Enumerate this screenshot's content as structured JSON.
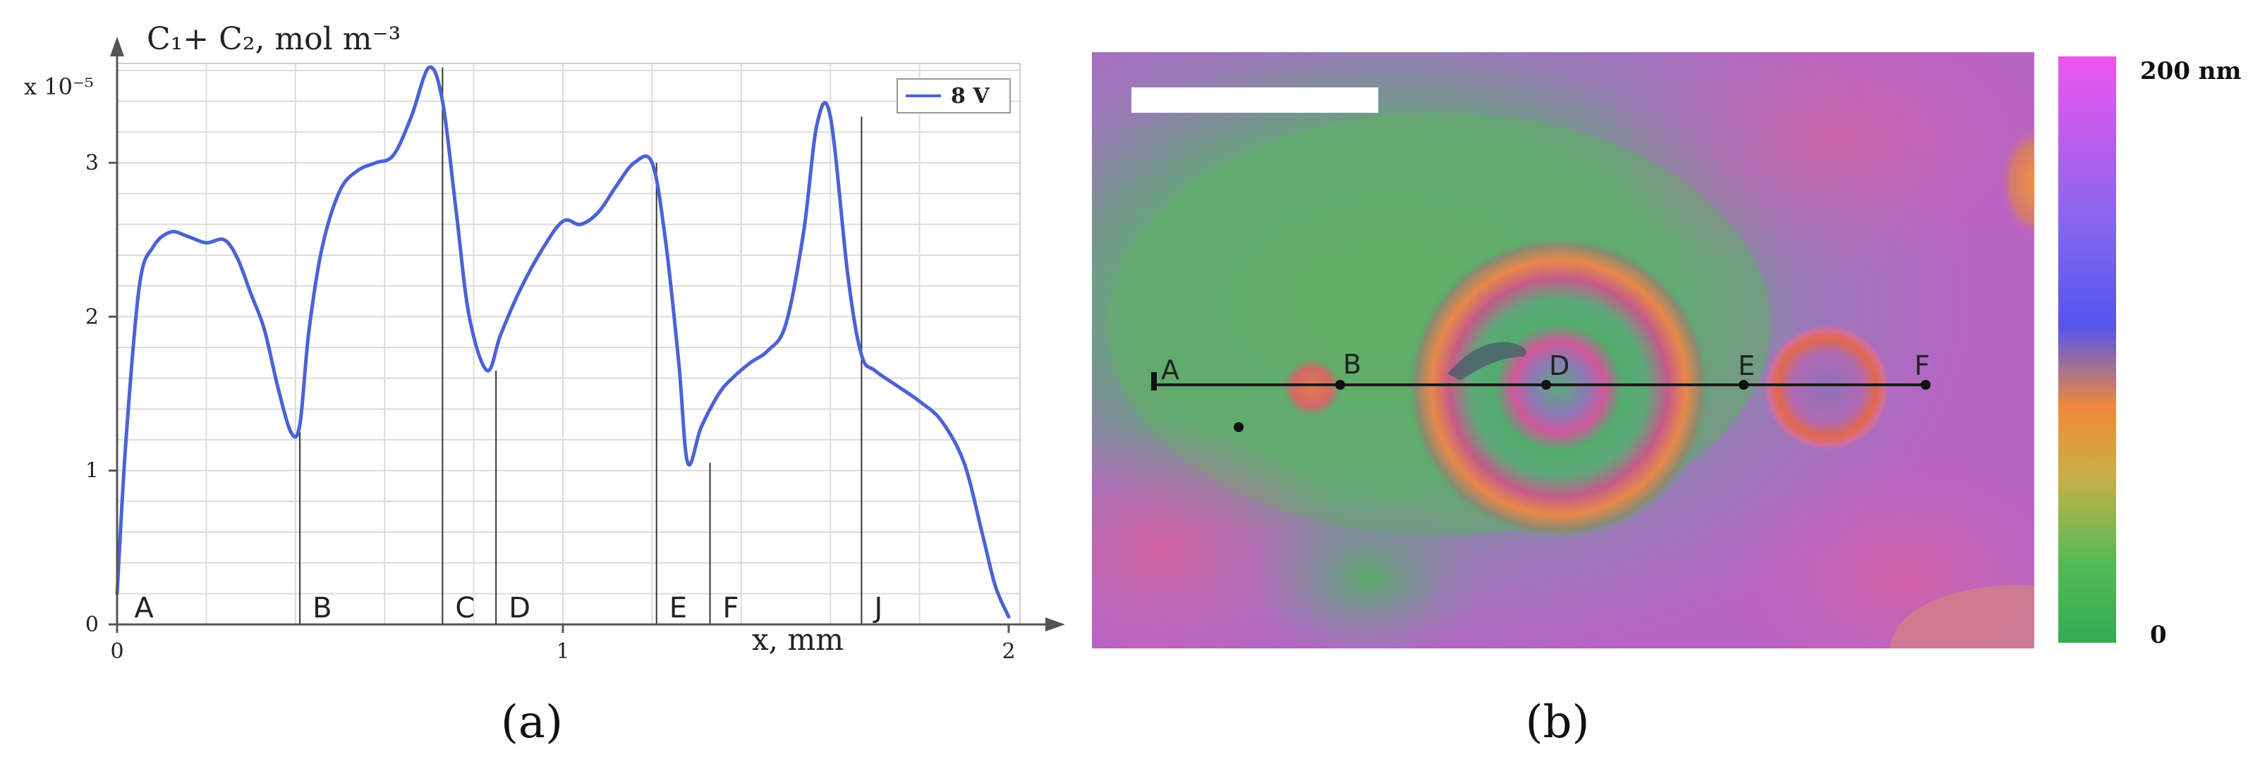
{
  "panel_a": {
    "label": "(a)",
    "ylabel": "C₁+ C₂, mol m⁻³",
    "yexp": "x 10⁻⁵",
    "xlabel": "x, mm",
    "legend_label": "8 V",
    "x_tick_labels": [
      "0",
      "1",
      "2"
    ],
    "y_tick_labels": [
      "0",
      "1",
      "2",
      "3"
    ],
    "point_labels": [
      "A",
      "B",
      "C",
      "D",
      "E",
      "F",
      "J"
    ]
  },
  "panel_b": {
    "label": "(b)",
    "colorbar_max": "200 nm",
    "colorbar_min": "0",
    "point_labels": [
      "A",
      "B",
      "D",
      "E",
      "F"
    ],
    "colorbar_colors": [
      "#ee55ee",
      "#8866ee",
      "#5555ee",
      "#f08a3a",
      "#c8b048",
      "#55bb55",
      "#33aa55"
    ]
  },
  "chart_data": [
    {
      "type": "line",
      "title": "",
      "xlabel": "x, mm",
      "ylabel": "C₁+ C₂, mol m⁻³",
      "y_multiplier": "x 10⁻⁵",
      "xlim": [
        0,
        2
      ],
      "ylim": [
        0,
        3.6
      ],
      "x_ticks": [
        0,
        1,
        2
      ],
      "y_ticks": [
        0,
        1,
        2,
        3
      ],
      "grid": true,
      "legend_position": "top-right",
      "color": "#4a62d8",
      "series": [
        {
          "name": "8 V",
          "x": [
            0.0,
            0.02,
            0.05,
            0.08,
            0.12,
            0.16,
            0.2,
            0.24,
            0.27,
            0.3,
            0.33,
            0.36,
            0.39,
            0.41,
            0.43,
            0.46,
            0.5,
            0.54,
            0.58,
            0.62,
            0.66,
            0.7,
            0.73,
            0.76,
            0.79,
            0.83,
            0.86,
            0.9,
            0.95,
            1.0,
            1.04,
            1.08,
            1.12,
            1.16,
            1.2,
            1.23,
            1.26,
            1.28,
            1.31,
            1.35,
            1.38,
            1.42,
            1.46,
            1.5,
            1.54,
            1.57,
            1.6,
            1.64,
            1.67,
            1.7,
            1.75,
            1.8,
            1.85,
            1.9,
            1.94,
            1.97,
            2.0
          ],
          "y": [
            0.2,
            1.2,
            2.2,
            2.45,
            2.55,
            2.52,
            2.48,
            2.5,
            2.38,
            2.15,
            1.92,
            1.55,
            1.25,
            1.3,
            1.9,
            2.45,
            2.82,
            2.95,
            3.0,
            3.05,
            3.3,
            3.62,
            3.4,
            2.7,
            2.0,
            1.65,
            1.88,
            2.15,
            2.42,
            2.62,
            2.6,
            2.68,
            2.85,
            3.0,
            3.0,
            2.5,
            1.7,
            1.05,
            1.28,
            1.5,
            1.6,
            1.7,
            1.78,
            1.95,
            2.55,
            3.25,
            3.3,
            2.25,
            1.75,
            1.65,
            1.55,
            1.45,
            1.32,
            1.05,
            0.6,
            0.25,
            0.05
          ]
        }
      ],
      "vertical_markers": [
        {
          "label": "A",
          "x": 0.01,
          "y": 0.0
        },
        {
          "label": "B",
          "x": 0.41,
          "y": 1.25
        },
        {
          "label": "C",
          "x": 0.73,
          "y": 3.62
        },
        {
          "label": "D",
          "x": 0.85,
          "y": 1.65
        },
        {
          "label": "E",
          "x": 1.21,
          "y": 3.0
        },
        {
          "label": "F",
          "x": 1.33,
          "y": 1.05
        },
        {
          "label": "J",
          "x": 1.67,
          "y": 3.3
        }
      ]
    }
  ]
}
